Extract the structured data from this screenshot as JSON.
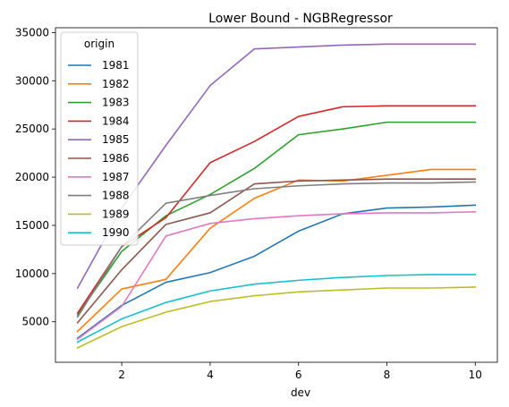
{
  "chart_data": {
    "type": "line",
    "title": "Lower Bound - NGBRegressor",
    "xlabel": "dev",
    "ylabel": "",
    "xlim": [
      0.5,
      10.5
    ],
    "ylim": [
      800,
      35500
    ],
    "xticks": [
      2,
      4,
      6,
      8,
      10
    ],
    "yticks": [
      5000,
      10000,
      15000,
      20000,
      25000,
      30000,
      35000
    ],
    "grid": false,
    "legend": {
      "title": "origin",
      "placement": "upper-left"
    },
    "x": [
      1,
      2,
      3,
      4,
      5,
      6,
      7,
      8,
      9,
      10
    ],
    "series": [
      {
        "name": "1981",
        "color": "#1f77b4",
        "values": [
          3300,
          6700,
          9100,
          10100,
          11800,
          14400,
          16200,
          16800,
          16900,
          17100
        ]
      },
      {
        "name": "1982",
        "color": "#ff7f0e",
        "values": [
          4000,
          8400,
          9400,
          14700,
          17800,
          19700,
          19600,
          20200,
          20800,
          20800
        ]
      },
      {
        "name": "1983",
        "color": "#2ca02c",
        "values": [
          5700,
          12300,
          16000,
          18200,
          20900,
          24400,
          25000,
          25700,
          25700,
          25700
        ]
      },
      {
        "name": "1984",
        "color": "#d62728",
        "values": [
          5900,
          12800,
          15800,
          21500,
          23700,
          26300,
          27300,
          27400,
          27400,
          27400
        ]
      },
      {
        "name": "1985",
        "color": "#9467bd",
        "values": [
          8500,
          16800,
          23300,
          29500,
          33300,
          33500,
          33700,
          33800,
          33800,
          33800
        ]
      },
      {
        "name": "1986",
        "color": "#8c564b",
        "values": [
          4900,
          10400,
          15100,
          16300,
          19300,
          19600,
          19700,
          19800,
          19800,
          19800
        ]
      },
      {
        "name": "1987",
        "color": "#e377c2",
        "values": [
          3200,
          6600,
          13900,
          15200,
          15700,
          16000,
          16200,
          16300,
          16300,
          16400
        ]
      },
      {
        "name": "1988",
        "color": "#7f7f7f",
        "values": [
          5500,
          12800,
          17300,
          18100,
          18800,
          19100,
          19300,
          19400,
          19400,
          19500
        ]
      },
      {
        "name": "1989",
        "color": "#bcbd22",
        "values": [
          2300,
          4500,
          6000,
          7100,
          7700,
          8100,
          8300,
          8500,
          8500,
          8600
        ]
      },
      {
        "name": "1990",
        "color": "#17becf",
        "values": [
          2900,
          5300,
          7000,
          8200,
          8900,
          9300,
          9600,
          9800,
          9900,
          9900
        ]
      }
    ]
  }
}
